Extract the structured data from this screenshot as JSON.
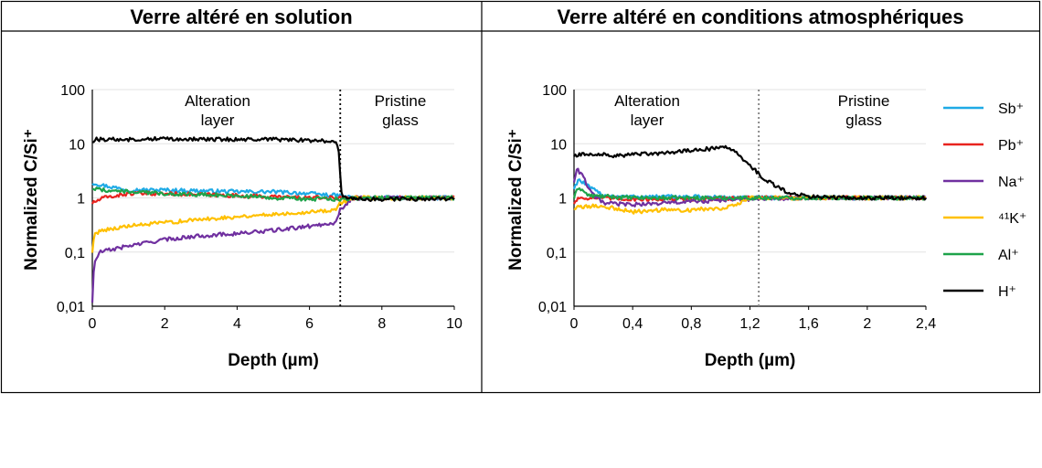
{
  "panels": [
    {
      "title": "Verre altéré en solution",
      "chart_data": {
        "type": "line",
        "y_scale": "log",
        "xlabel": "Depth (µm)",
        "ylabel": "Normalized C/Si⁺",
        "xlim": [
          0,
          10
        ],
        "ylim": [
          0.01,
          100
        ],
        "x_ticks": [
          "0",
          "2",
          "4",
          "6",
          "8",
          "10"
        ],
        "y_ticks": [
          "0,01",
          "0,1",
          "1",
          "10",
          "100"
        ],
        "grid": true,
        "boundary_x": 6.85,
        "boundary_style": "dotted-black",
        "annotations": [
          {
            "lines": [
              "Alteration",
              "layer"
            ]
          },
          {
            "lines": [
              "Pristine",
              "glass"
            ]
          }
        ],
        "series": [
          {
            "name": "Sb⁺",
            "color": "#1EAAE6",
            "x": [
              0,
              0.3,
              1,
              2,
              3,
              4,
              5,
              6,
              6.8,
              7.2,
              8,
              9,
              10
            ],
            "y": [
              1.9,
              1.7,
              1.4,
              1.4,
              1.35,
              1.3,
              1.3,
              1.2,
              1.1,
              1.0,
              1.0,
              1.0,
              1.0
            ]
          },
          {
            "name": "Pb⁺",
            "color": "#E8231F",
            "x": [
              0,
              0.3,
              1,
              2,
              3,
              4,
              5,
              6,
              6.8,
              7.2,
              8,
              9,
              10
            ],
            "y": [
              0.8,
              1.0,
              1.2,
              1.2,
              1.15,
              1.1,
              1.05,
              1.0,
              1.0,
              1.0,
              1.0,
              1.0,
              1.0
            ]
          },
          {
            "name": "Na⁺",
            "color": "#7030A0",
            "x": [
              0,
              0.05,
              0.2,
              1,
              2,
              3,
              4,
              5,
              6,
              6.7,
              6.85,
              7.2,
              8,
              9,
              10
            ],
            "y": [
              0.012,
              0.06,
              0.1,
              0.13,
              0.17,
              0.2,
              0.22,
              0.25,
              0.3,
              0.35,
              0.6,
              1.0,
              1.0,
              1.0,
              1.0
            ]
          },
          {
            "name": "⁴¹K⁺",
            "color": "#FFC000",
            "x": [
              0,
              0.05,
              0.2,
              1,
              2,
              3,
              4,
              5,
              6,
              6.7,
              6.85,
              7.2,
              8,
              9,
              10
            ],
            "y": [
              0.1,
              0.2,
              0.25,
              0.3,
              0.35,
              0.4,
              0.45,
              0.5,
              0.55,
              0.6,
              0.8,
              1.0,
              1.0,
              1.0,
              1.0
            ]
          },
          {
            "name": "Al⁺",
            "color": "#1EA34A",
            "x": [
              0,
              0.3,
              1,
              2,
              3,
              4,
              5,
              6,
              6.8,
              7.2,
              8,
              9,
              10
            ],
            "y": [
              1.5,
              1.4,
              1.3,
              1.2,
              1.15,
              1.1,
              1.0,
              0.95,
              0.95,
              1.0,
              1.0,
              1.0,
              1.0
            ]
          },
          {
            "name": "H⁺",
            "color": "#000000",
            "x": [
              0,
              0.1,
              1,
              2,
              3,
              4,
              5,
              6,
              6.7,
              6.8,
              6.9,
              7.2,
              8,
              9,
              10
            ],
            "y": [
              11,
              12,
              12,
              12.5,
              12,
              12,
              12,
              11.5,
              11,
              8,
              1.0,
              0.95,
              0.95,
              0.95,
              0.95
            ]
          }
        ]
      }
    },
    {
      "title": "Verre altéré en conditions atmosphériques",
      "chart_data": {
        "type": "line",
        "y_scale": "log",
        "xlabel": "Depth (µm)",
        "ylabel": "Normalized C/Si⁺",
        "xlim": [
          0,
          2.4
        ],
        "ylim": [
          0.01,
          100
        ],
        "x_ticks": [
          "0",
          "0,4",
          "0,8",
          "1,2",
          "1,6",
          "2",
          "2,4"
        ],
        "y_ticks": [
          "0,01",
          "0,1",
          "1",
          "10",
          "100"
        ],
        "grid": true,
        "boundary_x": 1.26,
        "boundary_style": "dotted-grey",
        "annotations": [
          {
            "lines": [
              "Alteration",
              "layer"
            ]
          },
          {
            "lines": [
              "Pristine",
              "glass"
            ]
          }
        ],
        "series": [
          {
            "name": "Sb⁺",
            "color": "#1EAAE6",
            "x": [
              0,
              0.03,
              0.1,
              0.2,
              0.4,
              0.8,
              1.2,
              1.6,
              2,
              2.4
            ],
            "y": [
              1.5,
              2.2,
              1.6,
              1.1,
              1.05,
              1.05,
              1.0,
              1.0,
              1.0,
              1.0
            ]
          },
          {
            "name": "Pb⁺",
            "color": "#E8231F",
            "x": [
              0,
              0.03,
              0.1,
              0.4,
              0.8,
              1.2,
              1.6,
              2,
              2.4
            ],
            "y": [
              0.8,
              1.0,
              1.0,
              0.95,
              0.95,
              1.0,
              1.0,
              1.0,
              1.0
            ]
          },
          {
            "name": "Na⁺",
            "color": "#7030A0",
            "x": [
              0,
              0.02,
              0.06,
              0.12,
              0.2,
              0.4,
              0.8,
              1.2,
              1.6,
              2,
              2.4
            ],
            "y": [
              2.0,
              3.5,
              2.5,
              1.2,
              0.8,
              0.75,
              0.85,
              0.95,
              1.0,
              1.0,
              1.0
            ]
          },
          {
            "name": "⁴¹K⁺",
            "color": "#FFC000",
            "x": [
              0,
              0.1,
              0.2,
              0.4,
              0.6,
              0.8,
              1.0,
              1.1,
              1.2,
              1.6,
              2,
              2.4
            ],
            "y": [
              0.65,
              0.7,
              0.7,
              0.55,
              0.6,
              0.6,
              0.65,
              0.75,
              1.0,
              1.0,
              1.0,
              1.0
            ]
          },
          {
            "name": "Al⁺",
            "color": "#1EA34A",
            "x": [
              0,
              0.03,
              0.1,
              0.4,
              0.8,
              1.2,
              1.6,
              2,
              2.4
            ],
            "y": [
              1.0,
              1.6,
              1.1,
              1.0,
              1.0,
              1.0,
              1.0,
              1.0,
              1.0
            ]
          },
          {
            "name": "H⁺",
            "color": "#000000",
            "x": [
              0,
              0.1,
              0.3,
              0.5,
              0.7,
              0.9,
              1.05,
              1.1,
              1.2,
              1.3,
              1.45,
              1.6,
              2,
              2.4
            ],
            "y": [
              6,
              6.5,
              6,
              6.5,
              7,
              8,
              8.5,
              7,
              4,
              2.2,
              1.3,
              1.05,
              1.0,
              1.0
            ]
          }
        ]
      }
    }
  ],
  "legend": {
    "placement": "right",
    "entries": [
      {
        "name": "Sb⁺",
        "color": "#1EAAE6"
      },
      {
        "name": "Pb⁺",
        "color": "#E8231F"
      },
      {
        "name": "Na⁺",
        "color": "#7030A0"
      },
      {
        "name": "⁴¹K⁺",
        "color": "#FFC000"
      },
      {
        "name": "Al⁺",
        "color": "#1EA34A"
      },
      {
        "name": "H⁺",
        "color": "#000000"
      }
    ]
  }
}
